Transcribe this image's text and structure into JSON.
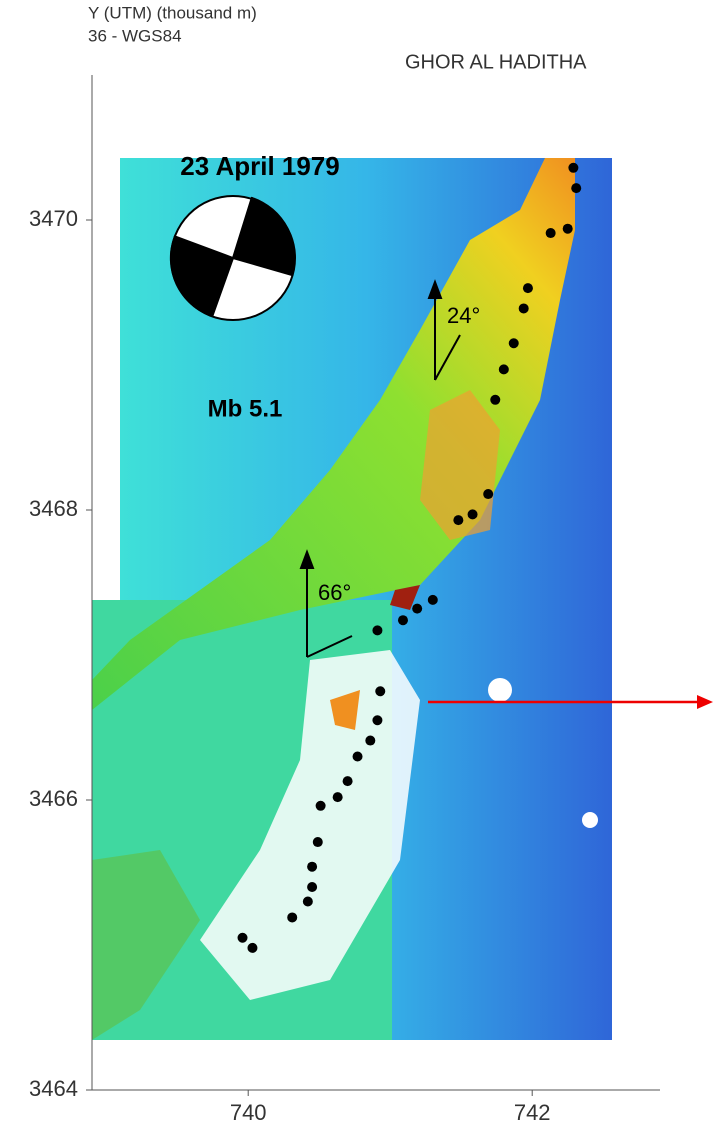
{
  "chart_data": {
    "type": "map",
    "y_label": "Y (UTM) (thousand m)",
    "datum": "36 - WGS84",
    "title": "GHOR AL HADITHA",
    "event_date": "23 April 1979",
    "magnitude": "Mb  5.1",
    "angles": [
      "24°",
      "66°"
    ],
    "xlim": [
      738.9,
      742.9
    ],
    "ylim": [
      3464,
      3471
    ],
    "xticks": [
      740,
      742
    ],
    "yticks": [
      3464,
      3466,
      3468,
      3470
    ],
    "color": "#000000",
    "x": [
      742.29,
      742.31,
      742.25,
      742.13,
      741.97,
      741.94,
      741.87,
      741.8,
      741.74,
      741.69,
      741.58,
      741.48,
      741.3,
      741.19,
      741.09,
      740.91,
      740.93,
      740.91,
      740.86,
      740.77,
      740.7,
      740.63,
      740.51,
      740.49,
      740.45,
      740.45,
      740.42,
      740.31,
      739.96,
      740.03
    ],
    "y": [
      3470.36,
      3470.22,
      3469.94,
      3469.91,
      3469.53,
      3469.39,
      3469.15,
      3468.97,
      3468.76,
      3468.11,
      3467.97,
      3467.93,
      3467.38,
      3467.32,
      3467.24,
      3467.17,
      3466.75,
      3466.55,
      3466.41,
      3466.3,
      3466.13,
      3466.02,
      3465.96,
      3465.71,
      3465.54,
      3465.4,
      3465.3,
      3465.19,
      3465.05,
      3464.98
    ]
  }
}
